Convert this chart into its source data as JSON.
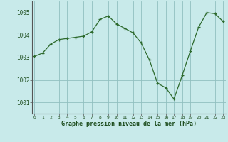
{
  "x": [
    0,
    1,
    2,
    3,
    4,
    5,
    6,
    7,
    8,
    9,
    10,
    11,
    12,
    13,
    14,
    15,
    16,
    17,
    18,
    19,
    20,
    21,
    22,
    23
  ],
  "y": [
    1003.05,
    1003.2,
    1003.6,
    1003.8,
    1003.85,
    1003.9,
    1003.95,
    1004.15,
    1004.7,
    1004.85,
    1004.5,
    1004.3,
    1004.1,
    1003.65,
    1002.9,
    1001.85,
    1001.65,
    1001.15,
    1002.2,
    1003.3,
    1004.35,
    1005.0,
    1004.95,
    1004.6
  ],
  "line_color": "#2d6a2d",
  "marker_color": "#2d6a2d",
  "bg_color": "#c8eaea",
  "plot_bg_color": "#c8eaea",
  "grid_color": "#90c0c0",
  "xlabel": "Graphe pression niveau de la mer (hPa)",
  "xlabel_color": "#1a4a1a",
  "ylabel_ticks": [
    1001,
    1002,
    1003,
    1004,
    1005
  ],
  "xlim": [
    -0.3,
    23.3
  ],
  "ylim": [
    1000.5,
    1005.5
  ],
  "figsize": [
    3.2,
    2.0
  ],
  "dpi": 100
}
